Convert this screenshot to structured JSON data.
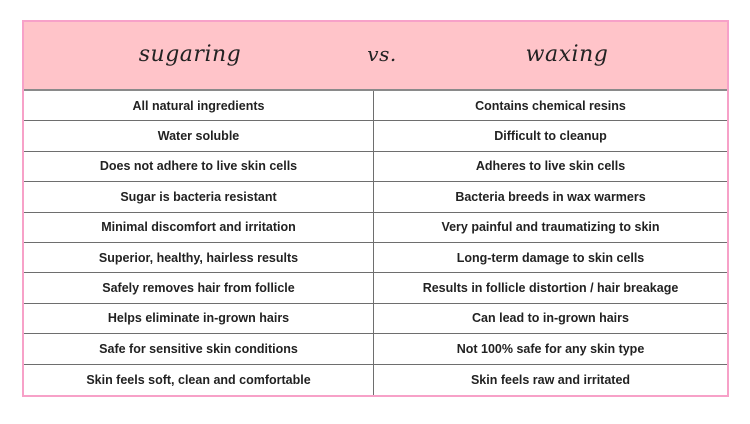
{
  "header": {
    "left_title": "sugaring",
    "vs_label": "vs.",
    "right_title": "waxing"
  },
  "rows": [
    {
      "sugaring": "All natural ingredients",
      "waxing": "Contains chemical resins"
    },
    {
      "sugaring": "Water soluble",
      "waxing": "Difficult to cleanup"
    },
    {
      "sugaring": "Does not adhere to live skin cells",
      "waxing": "Adheres to live skin cells"
    },
    {
      "sugaring": "Sugar is bacteria resistant",
      "waxing": "Bacteria breeds in wax warmers"
    },
    {
      "sugaring": "Minimal discomfort and irritation",
      "waxing": "Very painful and traumatizing to skin"
    },
    {
      "sugaring": "Superior, healthy, hairless results",
      "waxing": "Long-term damage to skin cells"
    },
    {
      "sugaring": "Safely removes hair from follicle",
      "waxing": "Results in follicle distortion / hair breakage"
    },
    {
      "sugaring": "Helps eliminate in-grown hairs",
      "waxing": "Can lead to in-grown hairs"
    },
    {
      "sugaring": "Safe for sensitive skin conditions",
      "waxing": "Not 100% safe for any skin type"
    },
    {
      "sugaring": "Skin feels soft, clean and comfortable",
      "waxing": "Skin feels raw and irritated"
    }
  ],
  "colors": {
    "header_fill": "#ffc4c9",
    "border": "#f7a1c8"
  }
}
